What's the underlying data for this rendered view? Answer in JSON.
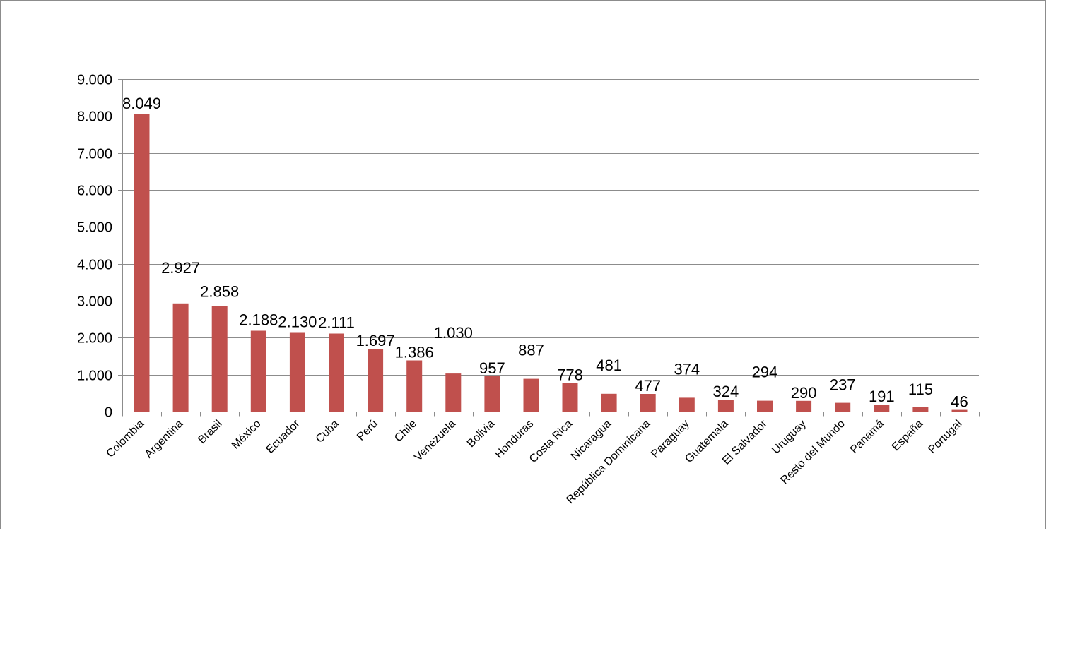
{
  "chart_data": {
    "type": "bar",
    "categories": [
      "Colombia",
      "Argentina",
      "Brasil",
      "México",
      "Ecuador",
      "Cuba",
      "Perú",
      "Chile",
      "Venezuela",
      "Bolivia",
      "Honduras",
      "Costa Rica",
      "Nicaragua",
      "República Dominicana",
      "Paraguay",
      "Guatemala",
      "El Salvador",
      "Uruguay",
      "Resto del Mundo",
      "Panamá",
      "España",
      "Portugal"
    ],
    "values": [
      8049,
      2927,
      2858,
      2188,
      2130,
      2111,
      1697,
      1386,
      1030,
      957,
      887,
      778,
      481,
      477,
      374,
      324,
      294,
      290,
      237,
      191,
      115,
      46
    ],
    "data_labels": [
      "8.049",
      "2.927",
      "2.858",
      "2.188",
      "2.130",
      "2.111",
      "1.697",
      "1.386",
      "1.030",
      "957",
      "887",
      "778",
      "481",
      "477",
      "374",
      "324",
      "294",
      "290",
      "237",
      "191",
      "115",
      "46"
    ],
    "yticks": [
      0,
      1000,
      2000,
      3000,
      4000,
      5000,
      6000,
      7000,
      8000,
      9000
    ],
    "ytick_labels": [
      "0",
      "1.000",
      "2.000",
      "3.000",
      "4.000",
      "5.000",
      "6.000",
      "7.000",
      "8.000",
      "9.000"
    ],
    "ylim": [
      0,
      9000
    ],
    "title": "",
    "xlabel": "",
    "ylabel": "",
    "grid": true,
    "legend": "none",
    "bar_color": "#c0504d",
    "grid_color": "#8c8c8c"
  }
}
